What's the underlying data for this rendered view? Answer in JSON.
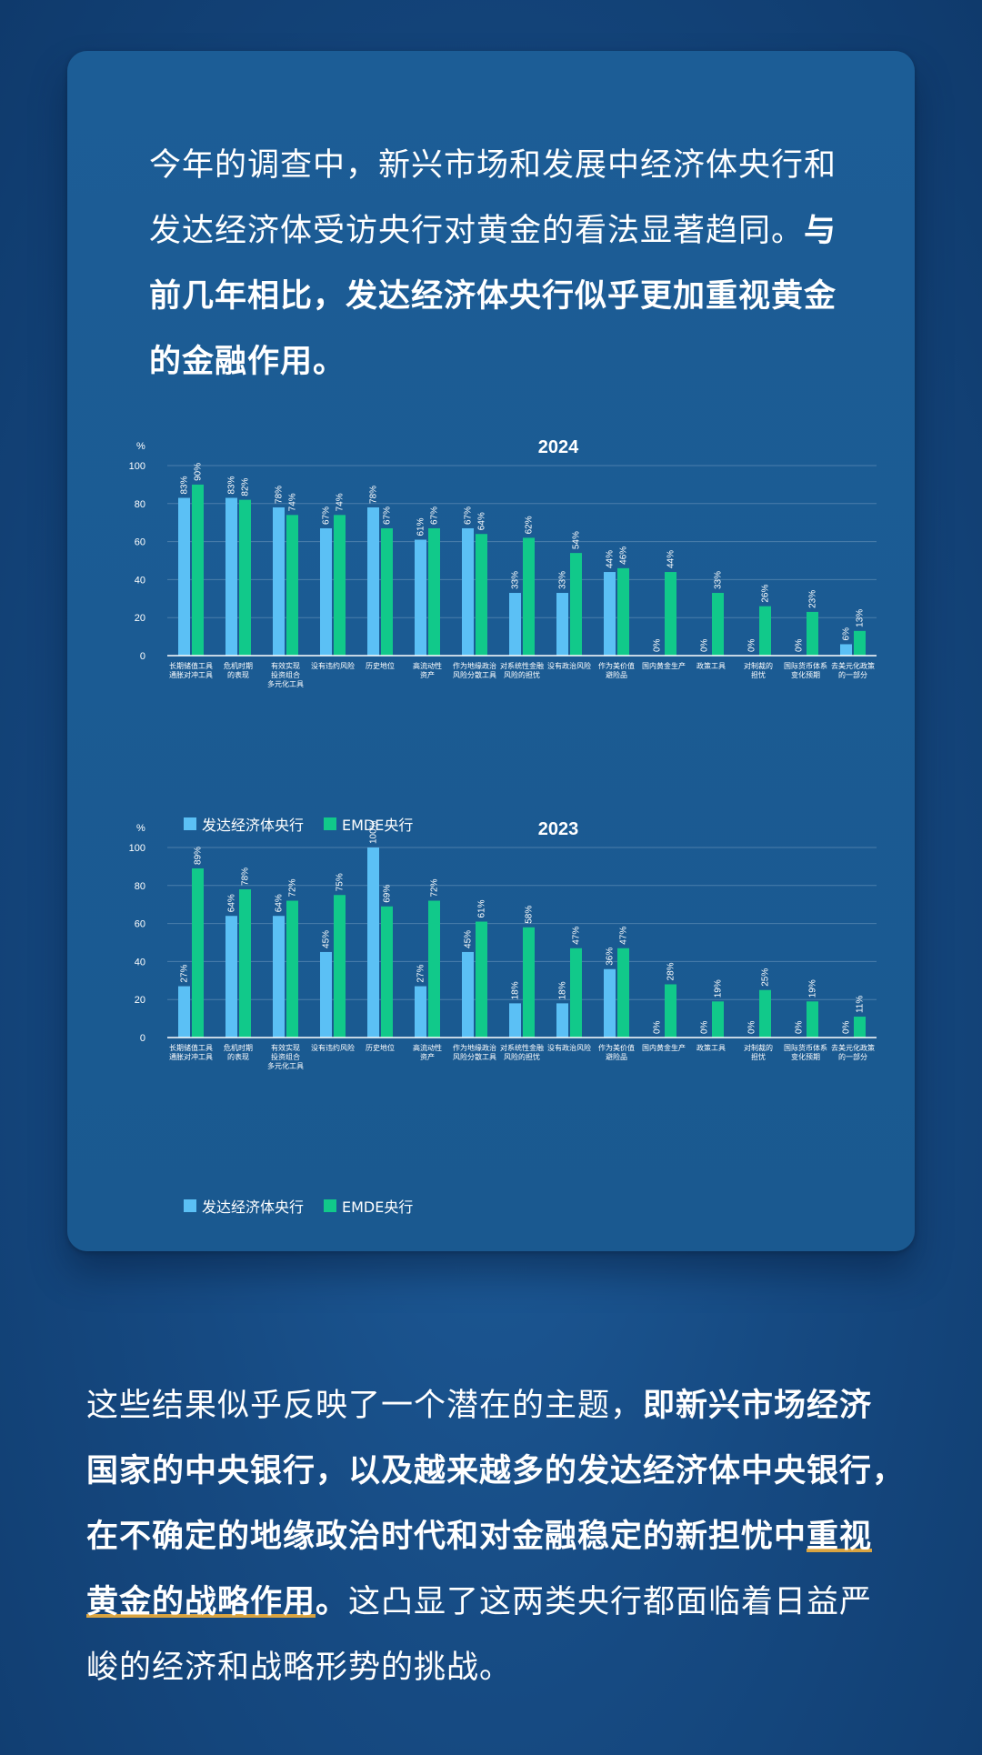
{
  "intro": {
    "text_regular": "今年的调查中，新兴市场和发展中经济体央行和发达经济体受访央行对黄金的看法显著趋同。",
    "text_bold": "与前几年相比，发达经济体央行似乎更加重视黄金的金融作用。"
  },
  "outro": {
    "text_regular_1": "这些结果似乎反映了一个潜在的主题，",
    "text_bold": "即新兴市场经济国家的中央银行，以及越来越多的发达经济体中央银行，在不确定的地缘政治时代和对金融稳定的新担忧中",
    "text_bold_underlined": "重视黄金的战略作用",
    "text_bold_end": "。",
    "text_regular_2": "这凸显了这两类央行都面临着日益严峻的经济和战略形势的挑战。"
  },
  "colors": {
    "advanced": "#5bc0f5",
    "emde": "#11c98a",
    "grid": "#4b7eab",
    "axis": "#ffffff"
  },
  "chart_data": [
    {
      "type": "bar",
      "title": "2024",
      "ylabel": "%",
      "ylim": [
        0,
        100
      ],
      "yticks": [
        0,
        20,
        40,
        60,
        80,
        100
      ],
      "grid": true,
      "categories": [
        [
          "长期储值工具",
          "通胀对冲工具"
        ],
        [
          "危机时期",
          "的表现"
        ],
        [
          "有效实现",
          "投资组合",
          "多元化工具"
        ],
        [
          "没有违约风险"
        ],
        [
          "历史地位"
        ],
        [
          "高流动性",
          "资产"
        ],
        [
          "作为地缘政治",
          "风险分散工具"
        ],
        [
          "对系统性金融",
          "风险的担忧"
        ],
        [
          "没有政治风险"
        ],
        [
          "作为美价值",
          "避险品"
        ],
        [
          "国内黄金生产"
        ],
        [
          "政策工具"
        ],
        [
          "对制裁的",
          "担忧"
        ],
        [
          "国际货币体系",
          "变化预期"
        ],
        [
          "去美元化政策",
          "的一部分"
        ]
      ],
      "series": [
        {
          "name": "发达经济体央行",
          "values": [
            83,
            83,
            78,
            67,
            78,
            61,
            67,
            33,
            33,
            44,
            null,
            null,
            null,
            null,
            6
          ],
          "labels": [
            "83%",
            "83%",
            "78%",
            "67%",
            "78%",
            "61%",
            "67%",
            "33%",
            "33%",
            "44%",
            "0%",
            "0%",
            "0%",
            "0%",
            "6%"
          ]
        },
        {
          "name": "EMDE央行",
          "values": [
            90,
            82,
            74,
            74,
            67,
            67,
            64,
            62,
            54,
            46,
            44,
            33,
            26,
            23,
            13
          ],
          "labels": [
            "90%",
            "82%",
            "74%",
            "74%",
            "67%",
            "67%",
            "64%",
            "62%",
            "54%",
            "46%",
            "44%",
            "33%",
            "26%",
            "23%",
            "13%"
          ]
        }
      ]
    },
    {
      "type": "bar",
      "title": "2023",
      "ylabel": "%",
      "ylim": [
        0,
        100
      ],
      "yticks": [
        0,
        20,
        40,
        60,
        80,
        100
      ],
      "grid": true,
      "categories": [
        [
          "长期储值工具",
          "通胀对冲工具"
        ],
        [
          "危机时期",
          "的表现"
        ],
        [
          "有效实现",
          "投资组合",
          "多元化工具"
        ],
        [
          "没有违约风险"
        ],
        [
          "历史地位"
        ],
        [
          "高流动性",
          "资产"
        ],
        [
          "作为地缘政治",
          "风险分散工具"
        ],
        [
          "对系统性金融",
          "风险的担忧"
        ],
        [
          "没有政治风险"
        ],
        [
          "作为美价值",
          "避险品"
        ],
        [
          "国内黄金生产"
        ],
        [
          "政策工具"
        ],
        [
          "对制裁的",
          "担忧"
        ],
        [
          "国际货币体系",
          "变化预期"
        ],
        [
          "去美元化政策",
          "的一部分"
        ]
      ],
      "series": [
        {
          "name": "发达经济体央行",
          "values": [
            27,
            64,
            64,
            45,
            100,
            27,
            45,
            18,
            18,
            36,
            null,
            null,
            null,
            null,
            null
          ],
          "labels": [
            "27%",
            "64%",
            "64%",
            "45%",
            "100%",
            "27%",
            "45%",
            "18%",
            "18%",
            "36%",
            "0%",
            "0%",
            "0%",
            "0%",
            "0%"
          ]
        },
        {
          "name": "EMDE央行",
          "values": [
            89,
            78,
            72,
            75,
            69,
            72,
            61,
            58,
            47,
            47,
            28,
            19,
            25,
            19,
            11
          ],
          "labels": [
            "89%",
            "78%",
            "72%",
            "75%",
            "69%",
            "72%",
            "61%",
            "58%",
            "47%",
            "47%",
            "28%",
            "19%",
            "25%",
            "19%",
            "11%"
          ]
        }
      ]
    }
  ]
}
